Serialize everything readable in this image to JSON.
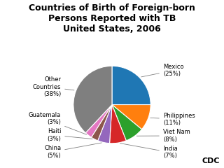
{
  "chart_data": {
    "type": "pie",
    "title": "Countries of Birth of Foreign-born\nPersons Reported with TB\nUnited States, 2006",
    "categories": [
      "Mexico\n(25%)",
      "Philippines\n(11%)",
      "Viet Nam\n(8%)",
      "India\n(7%)",
      "China\n(5%)",
      "Haiti\n(3%)",
      "Guatemala\n(3%)",
      "Other\nCountries\n(38%)"
    ],
    "values": [
      25,
      11,
      8,
      7,
      5,
      3,
      3,
      38
    ],
    "annotations": [
      "CDC"
    ]
  }
}
